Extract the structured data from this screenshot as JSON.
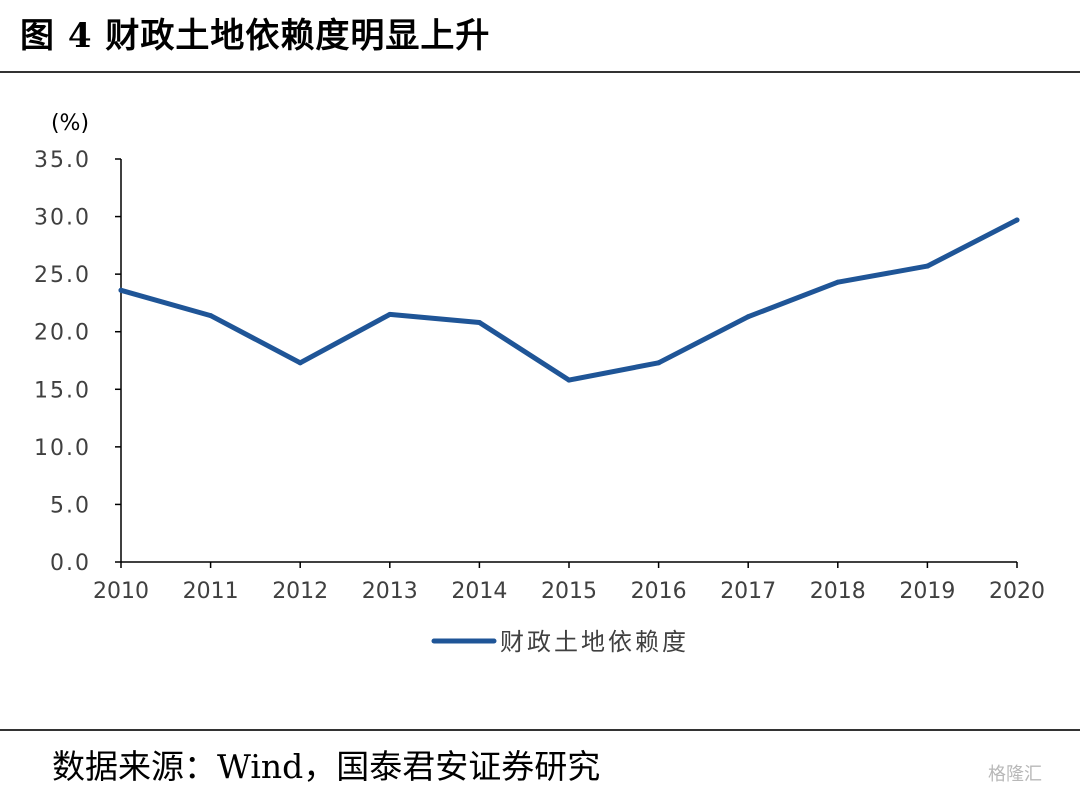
{
  "header": {
    "title": "图 4  财政土地依赖度明显上升"
  },
  "footer": {
    "source": "数据来源：Wind，国泰君安证券研究",
    "watermark": "格隆汇"
  },
  "chart_data": {
    "type": "line",
    "title": "",
    "xlabel": "",
    "ylabel": "(%)",
    "ylim": [
      0,
      35
    ],
    "yticks": [
      "0.0",
      "5.0",
      "10.0",
      "15.0",
      "20.0",
      "25.0",
      "30.0",
      "35.0"
    ],
    "x": [
      "2010",
      "2011",
      "2012",
      "2013",
      "2014",
      "2015",
      "2016",
      "2017",
      "2018",
      "2019",
      "2020"
    ],
    "series": [
      {
        "name": "财政土地依赖度",
        "color": "#1F5597",
        "values": [
          23.6,
          21.4,
          17.3,
          21.5,
          20.8,
          15.8,
          17.3,
          21.3,
          24.3,
          25.7,
          29.7
        ]
      }
    ],
    "grid": false,
    "legend": "bottom-center"
  }
}
